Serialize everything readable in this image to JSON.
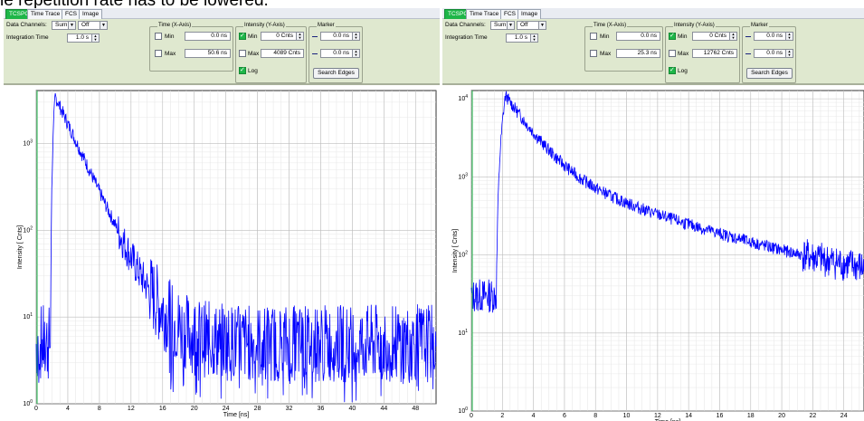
{
  "caption": "le repetition rate has to be lowered.",
  "colors": {
    "accent_green": "#1eb648",
    "trace_blue": "#0000ff",
    "panel_bg": "#dfe8cf"
  },
  "panels": [
    {
      "tabs": [
        "TCSPC",
        "Time Trace",
        "FCS",
        "Image"
      ],
      "data_channels_label": "Data Channels:",
      "data_channels_value": "Sum",
      "data_channels_mode": "Off",
      "integration_time_label": "Integration Time",
      "integration_time_value": "1.0 s",
      "time_group_label": "Time (X-Axis)",
      "time_min_label": "Min",
      "time_min_value": "0.0 ns",
      "time_max_label": "Max",
      "time_max_value": "50.6 ns",
      "intensity_group_label": "Intensity (Y-Axis)",
      "int_min_label": "Min",
      "int_min_value": "0 Cnts",
      "int_max_label": "Max",
      "int_max_value": "4089 Cnts",
      "log_label": "Log",
      "marker_group_label": "Marker",
      "marker1_value": "0.0 ns",
      "marker2_value": "0.0 ns",
      "search_edges_label": "Search Edges",
      "ylabel": "Intensity [ Cnts]",
      "xlabel": "Time [ns]"
    },
    {
      "tabs": [
        "TCSPC",
        "Time Trace",
        "FCS",
        "Image"
      ],
      "data_channels_label": "Data Channels:",
      "data_channels_value": "Sum",
      "data_channels_mode": "Off",
      "integration_time_label": "Integration Time",
      "integration_time_value": "1.0 s",
      "time_group_label": "Time (X-Axis)",
      "time_min_label": "Min",
      "time_min_value": "0.0 ns",
      "time_max_label": "Max",
      "time_max_value": "25.3 ns",
      "intensity_group_label": "Intensity (Y-Axis)",
      "int_min_label": "Min",
      "int_min_value": "0 Cnts",
      "int_max_label": "Max",
      "int_max_value": "12762 Cnts",
      "log_label": "Log",
      "marker_group_label": "Marker",
      "marker1_value": "0.0 ns",
      "marker2_value": "0.0 ns",
      "search_edges_label": "Search Edges",
      "ylabel": "Intensity [ Cnts]",
      "xlabel": "Time [ns]"
    }
  ],
  "chart_data": [
    {
      "type": "line",
      "xlabel": "Time [ns]",
      "ylabel": "Intensity [ Cnts]",
      "yscale": "log",
      "xlim": [
        0,
        50.6
      ],
      "ylim": [
        1,
        4089
      ],
      "x_ticks": [
        "0",
        "4",
        "8",
        "12",
        "16",
        "20",
        "24",
        "28",
        "32",
        "36",
        "40",
        "44",
        "48"
      ],
      "y_ticks": [
        "10^0",
        "10^1",
        "10^2",
        "10^3"
      ],
      "grid": true,
      "series": [
        {
          "color": "#0000ff",
          "baseline": 5,
          "rise_ns": 1.8,
          "peak_ns": 2.4,
          "peak": 3500,
          "decay_ns": 2.2,
          "background": 5
        }
      ]
    },
    {
      "type": "line",
      "xlabel": "Time [ns]",
      "ylabel": "Intensity [ Cnts]",
      "yscale": "log",
      "xlim": [
        0,
        25.3
      ],
      "ylim": [
        1,
        12762
      ],
      "x_ticks": [
        "0",
        "2",
        "4",
        "6",
        "8",
        "10",
        "12",
        "14",
        "16",
        "18",
        "20",
        "22",
        "24"
      ],
      "y_ticks": [
        "10^0",
        "10^1",
        "10^2",
        "10^3",
        "10^4"
      ],
      "grid": true,
      "series": [
        {
          "color": "#0000ff",
          "baseline": 30,
          "rise_ns": 1.6,
          "peak_ns": 2.2,
          "peak": 11000,
          "decay_ns": 1.4,
          "decay2_ns": 6.5,
          "background": 30
        }
      ]
    }
  ]
}
